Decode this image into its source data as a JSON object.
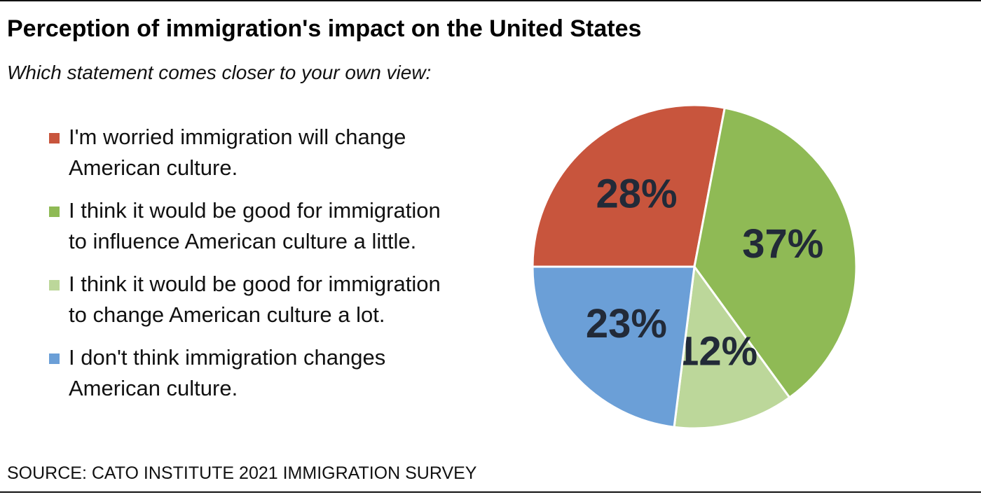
{
  "chart_data": {
    "type": "pie",
    "title": "Perception of immigration's impact on the United States",
    "subtitle": "Which statement comes closer to your own view:",
    "source": "SOURCE: CATO INSTITUTE 2021 IMMIGRATION SURVEY",
    "categories": [
      "I'm worried immigration will change American culture.",
      "I think it would be good for immigration to influence American culture a little.",
      "I think it would be good for immigration to change American culture a lot.",
      "I don't think immigration changes American culture."
    ],
    "values": [
      28,
      37,
      12,
      23
    ],
    "value_labels": [
      "28%",
      "37%",
      "12%",
      "23%"
    ],
    "colors": [
      "#c8553d",
      "#8fba55",
      "#bcd79a",
      "#6b9fd7"
    ]
  }
}
